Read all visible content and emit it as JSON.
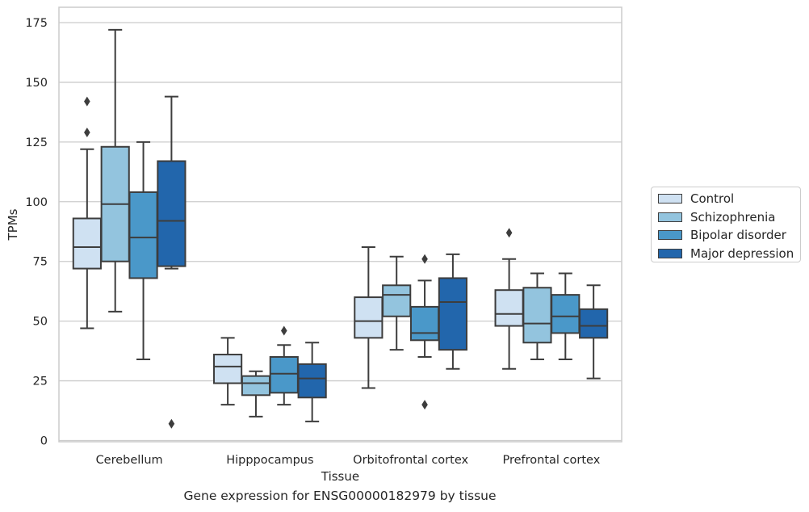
{
  "caption": "Gene expression for ENSG00000182979 by tissue",
  "chart_data": {
    "type": "box",
    "xlabel": "Tissue",
    "ylabel": "TPMs",
    "ylim": [
      0,
      180
    ],
    "yticks": [
      0,
      25,
      50,
      75,
      100,
      125,
      150,
      175
    ],
    "grid": true,
    "legend_position": "right",
    "categories": [
      "Cerebellum",
      "Hipppocampus",
      "Orbitofrontal cortex",
      "Prefrontal cortex"
    ],
    "series": [
      {
        "name": "Control",
        "color": "#cfe1f2",
        "boxes": [
          {
            "whisker_low": 47,
            "q1": 72,
            "median": 81,
            "q3": 93,
            "whisker_high": 122,
            "outliers": [
              129,
              142
            ]
          },
          {
            "whisker_low": 15,
            "q1": 24,
            "median": 31,
            "q3": 36,
            "whisker_high": 43,
            "outliers": []
          },
          {
            "whisker_low": 22,
            "q1": 43,
            "median": 50,
            "q3": 60,
            "whisker_high": 81,
            "outliers": []
          },
          {
            "whisker_low": 30,
            "q1": 48,
            "median": 53,
            "q3": 63,
            "whisker_high": 76,
            "outliers": [
              87
            ]
          }
        ]
      },
      {
        "name": "Schizophrenia",
        "color": "#93c4de",
        "boxes": [
          {
            "whisker_low": 54,
            "q1": 75,
            "median": 99,
            "q3": 123,
            "whisker_high": 172,
            "outliers": []
          },
          {
            "whisker_low": 10,
            "q1": 19,
            "median": 24,
            "q3": 27,
            "whisker_high": 29,
            "outliers": []
          },
          {
            "whisker_low": 38,
            "q1": 52,
            "median": 61,
            "q3": 65,
            "whisker_high": 77,
            "outliers": []
          },
          {
            "whisker_low": 34,
            "q1": 41,
            "median": 49,
            "q3": 64,
            "whisker_high": 70,
            "outliers": []
          }
        ]
      },
      {
        "name": "Bipolar disorder",
        "color": "#4a98c9",
        "boxes": [
          {
            "whisker_low": 34,
            "q1": 68,
            "median": 85,
            "q3": 104,
            "whisker_high": 125,
            "outliers": []
          },
          {
            "whisker_low": 15,
            "q1": 20,
            "median": 28,
            "q3": 35,
            "whisker_high": 40,
            "outliers": [
              46
            ]
          },
          {
            "whisker_low": 35,
            "q1": 42,
            "median": 45,
            "q3": 56,
            "whisker_high": 67,
            "outliers": [
              76,
              15
            ]
          },
          {
            "whisker_low": 34,
            "q1": 45,
            "median": 52,
            "q3": 61,
            "whisker_high": 70,
            "outliers": []
          }
        ]
      },
      {
        "name": "Major depression",
        "color": "#2266ac",
        "boxes": [
          {
            "whisker_low": 72,
            "q1": 73,
            "median": 92,
            "q3": 117,
            "whisker_high": 144,
            "outliers": [
              7
            ]
          },
          {
            "whisker_low": 8,
            "q1": 18,
            "median": 26,
            "q3": 32,
            "whisker_high": 41,
            "outliers": []
          },
          {
            "whisker_low": 30,
            "q1": 38,
            "median": 58,
            "q3": 68,
            "whisker_high": 78,
            "outliers": []
          },
          {
            "whisker_low": 26,
            "q1": 43,
            "median": 48,
            "q3": 55,
            "whisker_high": 65,
            "outliers": []
          }
        ]
      }
    ]
  }
}
